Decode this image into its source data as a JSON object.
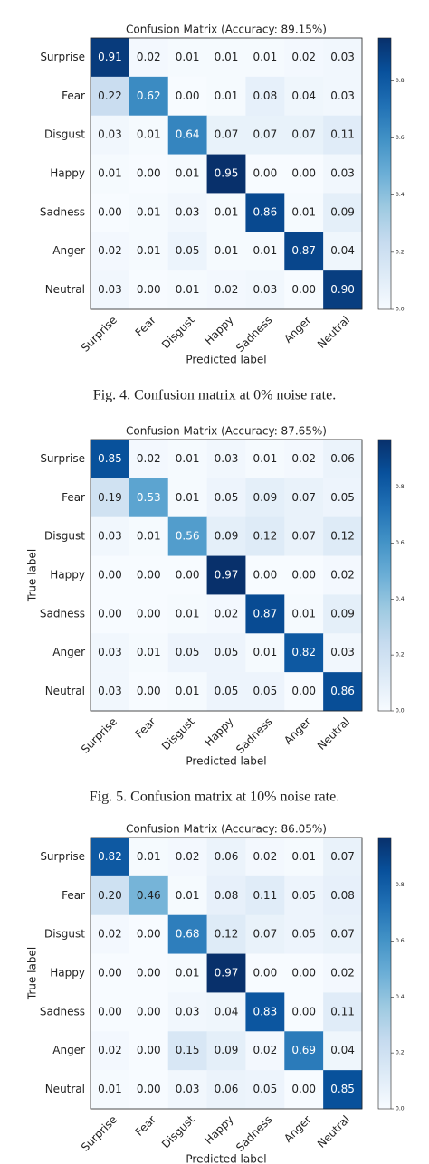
{
  "chart_data": [
    {
      "type": "heatmap",
      "title": "Confusion Matrix (Accuracy: 89.15%)",
      "xlabel": "Predicted label",
      "categories": [
        "Surprise",
        "Fear",
        "Disgust",
        "Happy",
        "Sadness",
        "Anger",
        "Neutral"
      ],
      "values": [
        [
          0.91,
          0.02,
          0.01,
          0.01,
          0.01,
          0.02,
          0.03
        ],
        [
          0.22,
          0.62,
          0,
          0.01,
          0.08,
          0.04,
          0.03
        ],
        [
          0.03,
          0.01,
          0.64,
          0.07,
          0.07,
          0.07,
          0.11
        ],
        [
          0.01,
          0,
          0.01,
          0.95,
          0,
          0,
          0.03
        ],
        [
          0,
          0.01,
          0.03,
          0.01,
          0.86,
          0.01,
          0.09
        ],
        [
          0.02,
          0.01,
          0.05,
          0.01,
          0.01,
          0.87,
          0.04
        ],
        [
          0.03,
          0,
          0.01,
          0.02,
          0.03,
          0,
          0.9
        ]
      ],
      "value_labels": [
        [
          "0.91",
          "0.02",
          "0.01",
          "0.01",
          "0.01",
          "0.02",
          "0.03"
        ],
        [
          "0.22",
          "0.62",
          "0.00",
          "0.01",
          "0.08",
          "0.04",
          "0.03"
        ],
        [
          "0.03",
          "0.01",
          "0.64",
          "0.07",
          "0.07",
          "0.07",
          "0.11"
        ],
        [
          "0.01",
          "0.00",
          "0.01",
          "0.95",
          "0.00",
          "0.00",
          "0.03"
        ],
        [
          "0.00",
          "0.01",
          "0.03",
          "0.01",
          "0.86",
          "0.01",
          "0.09"
        ],
        [
          "0.02",
          "0.01",
          "0.05",
          "0.01",
          "0.01",
          "0.87",
          "0.04"
        ],
        [
          "0.03",
          "0.00",
          "0.01",
          "0.02",
          "0.03",
          "0.00",
          "0.90"
        ]
      ],
      "zlim": [
        0,
        0.95
      ],
      "zticks": [
        {
          "value": 0,
          "label": "0.0"
        },
        {
          "value": 0.2,
          "label": "0.2"
        },
        {
          "value": 0.4,
          "label": "0.4"
        },
        {
          "value": 0.6,
          "label": "0.6"
        },
        {
          "value": 0.8,
          "label": "0.8"
        }
      ],
      "colormap": "Blues",
      "caption": "Fig. 4. Confusion matrix at 0% noise rate."
    },
    {
      "type": "heatmap",
      "title": "Confusion Matrix (Accuracy: 87.65%)",
      "xlabel": "Predicted label",
      "ylabel": "True label",
      "categories": [
        "Surprise",
        "Fear",
        "Disgust",
        "Happy",
        "Sadness",
        "Anger",
        "Neutral"
      ],
      "values": [
        [
          0.85,
          0.02,
          0.01,
          0.03,
          0.01,
          0.02,
          0.06
        ],
        [
          0.19,
          0.53,
          0.01,
          0.05,
          0.09,
          0.07,
          0.05
        ],
        [
          0.03,
          0.01,
          0.56,
          0.09,
          0.12,
          0.07,
          0.12
        ],
        [
          0,
          0,
          0,
          0.97,
          0,
          0,
          0.02
        ],
        [
          0,
          0,
          0.01,
          0.02,
          0.87,
          0.01,
          0.09
        ],
        [
          0.03,
          0.01,
          0.05,
          0.05,
          0.01,
          0.82,
          0.03
        ],
        [
          0.03,
          0,
          0.01,
          0.05,
          0.05,
          0,
          0.86
        ]
      ],
      "value_labels": [
        [
          "0.85",
          "0.02",
          "0.01",
          "0.03",
          "0.01",
          "0.02",
          "0.06"
        ],
        [
          "0.19",
          "0.53",
          "0.01",
          "0.05",
          "0.09",
          "0.07",
          "0.05"
        ],
        [
          "0.03",
          "0.01",
          "0.56",
          "0.09",
          "0.12",
          "0.07",
          "0.12"
        ],
        [
          "0.00",
          "0.00",
          "0.00",
          "0.97",
          "0.00",
          "0.00",
          "0.02"
        ],
        [
          "0.00",
          "0.00",
          "0.01",
          "0.02",
          "0.87",
          "0.01",
          "0.09"
        ],
        [
          "0.03",
          "0.01",
          "0.05",
          "0.05",
          "0.01",
          "0.82",
          "0.03"
        ],
        [
          "0.03",
          "0.00",
          "0.01",
          "0.05",
          "0.05",
          "0.00",
          "0.86"
        ]
      ],
      "zlim": [
        0,
        0.97
      ],
      "zticks": [
        {
          "value": 0,
          "label": "0.0"
        },
        {
          "value": 0.2,
          "label": "0.2"
        },
        {
          "value": 0.4,
          "label": "0.4"
        },
        {
          "value": 0.6,
          "label": "0.6"
        },
        {
          "value": 0.8,
          "label": "0.8"
        }
      ],
      "colormap": "Blues",
      "caption": "Fig. 5. Confusion matrix at 10% noise rate."
    },
    {
      "type": "heatmap",
      "title": "Confusion Matrix (Accuracy: 86.05%)",
      "xlabel": "Predicted label",
      "ylabel": "True label",
      "categories": [
        "Surprise",
        "Fear",
        "Disgust",
        "Happy",
        "Sadness",
        "Anger",
        "Neutral"
      ],
      "values": [
        [
          0.82,
          0.01,
          0.02,
          0.06,
          0.02,
          0.01,
          0.07
        ],
        [
          0.2,
          0.46,
          0.01,
          0.08,
          0.11,
          0.05,
          0.08
        ],
        [
          0.02,
          0,
          0.68,
          0.12,
          0.07,
          0.05,
          0.07
        ],
        [
          0,
          0,
          0.01,
          0.97,
          0,
          0,
          0.02
        ],
        [
          0,
          0,
          0.03,
          0.04,
          0.83,
          0,
          0.11
        ],
        [
          0.02,
          0,
          0.15,
          0.09,
          0.02,
          0.69,
          0.04
        ],
        [
          0.01,
          0,
          0.03,
          0.06,
          0.05,
          0,
          0.85
        ]
      ],
      "value_labels": [
        [
          "0.82",
          "0.01",
          "0.02",
          "0.06",
          "0.02",
          "0.01",
          "0.07"
        ],
        [
          "0.20",
          "0.46",
          "0.01",
          "0.08",
          "0.11",
          "0.05",
          "0.08"
        ],
        [
          "0.02",
          "0.00",
          "0.68",
          "0.12",
          "0.07",
          "0.05",
          "0.07"
        ],
        [
          "0.00",
          "0.00",
          "0.01",
          "0.97",
          "0.00",
          "0.00",
          "0.02"
        ],
        [
          "0.00",
          "0.00",
          "0.03",
          "0.04",
          "0.83",
          "0.00",
          "0.11"
        ],
        [
          "0.02",
          "0.00",
          "0.15",
          "0.09",
          "0.02",
          "0.69",
          "0.04"
        ],
        [
          "0.01",
          "0.00",
          "0.03",
          "0.06",
          "0.05",
          "0.00",
          "0.85"
        ]
      ],
      "zlim": [
        0,
        0.97
      ],
      "zticks": [
        {
          "value": 0,
          "label": "0.0"
        },
        {
          "value": 0.2,
          "label": "0.2"
        },
        {
          "value": 0.4,
          "label": "0.4"
        },
        {
          "value": 0.6,
          "label": "0.6"
        },
        {
          "value": 0.8,
          "label": "0.8"
        }
      ],
      "colormap": "Blues"
    }
  ]
}
